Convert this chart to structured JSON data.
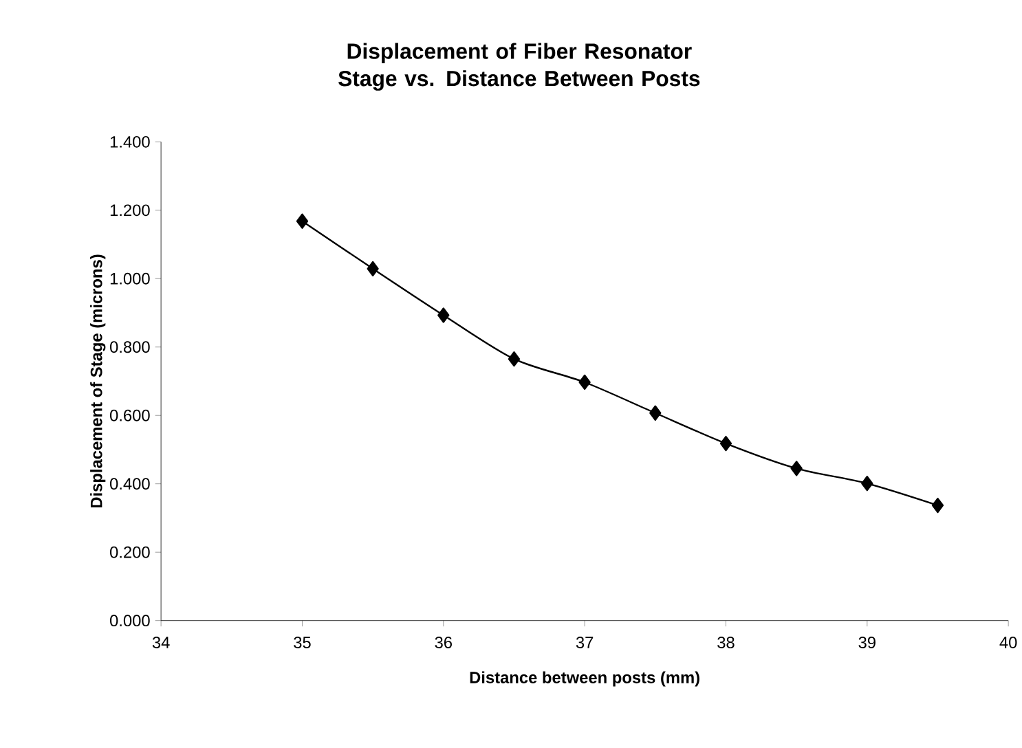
{
  "chart_data": {
    "type": "line",
    "title": "Displacement of Fiber Resonator Stage vs. Distance Between Posts",
    "xlabel": "Distance between posts (mm)",
    "ylabel": "Displacement of Stage (microns)",
    "x": [
      35,
      35.5,
      36,
      36.5,
      37,
      37.5,
      38,
      38.5,
      39,
      39.5
    ],
    "series": [
      {
        "color": "#000000",
        "values": [
          1.168,
          1.029,
          0.893,
          0.765,
          0.697,
          0.607,
          0.518,
          0.445,
          0.401,
          0.337
        ]
      }
    ],
    "xlim": [
      34,
      40
    ],
    "xticks": [
      34,
      35,
      36,
      37,
      38,
      39,
      40
    ],
    "ylim": [
      0,
      1.4
    ],
    "yticks": [
      {
        "value": 0,
        "label": "0.000"
      },
      {
        "value": 0.2,
        "label": "0.200"
      },
      {
        "value": 0.4,
        "label": "0.400"
      },
      {
        "value": 0.6,
        "label": "0.600"
      },
      {
        "value": 0.8,
        "label": "0.800"
      },
      {
        "value": 1.0,
        "label": "1.000"
      },
      {
        "value": 1.2,
        "label": "1.200"
      },
      {
        "value": 1.4,
        "label": "1.400"
      }
    ],
    "marker": "diamond",
    "line_style": "solid",
    "grid": false
  }
}
